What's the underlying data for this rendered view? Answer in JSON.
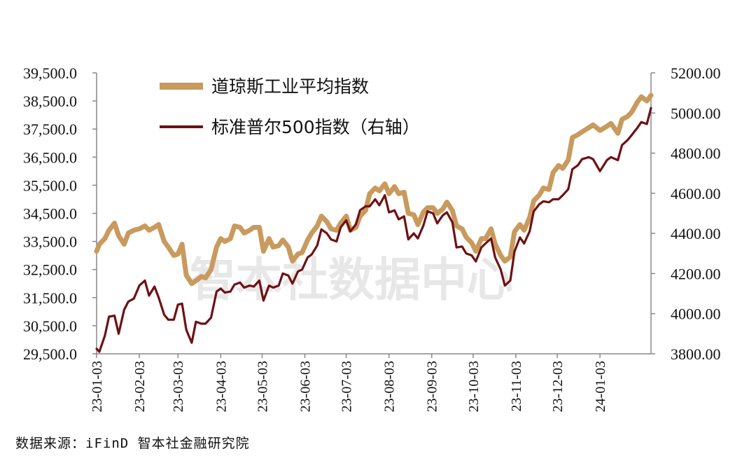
{
  "watermark": "智本社数据中心",
  "source": "数据来源：iFinD  智本社金融研究院",
  "chart_data": {
    "type": "line",
    "x_ticks": [
      "23-01-03",
      "23-02-03",
      "23-03-03",
      "23-04-03",
      "23-05-03",
      "23-06-03",
      "23-07-03",
      "23-08-03",
      "23-09-03",
      "23-10-03",
      "23-11-03",
      "23-12-03",
      "24-01-03"
    ],
    "left_axis": {
      "ylim": [
        29500,
        39500
      ],
      "ticks": [
        "29,500.0",
        "30,500.0",
        "31,500.0",
        "32,500.0",
        "33,500.0",
        "34,500.0",
        "35,500.0",
        "36,500.0",
        "37,500.0",
        "38,500.0",
        "39,500.0"
      ]
    },
    "right_axis": {
      "ylim": [
        3800,
        5200
      ],
      "ticks": [
        "3800.00",
        "4000.00",
        "4200.00",
        "4400.00",
        "4600.00",
        "4800.00",
        "5000.00",
        "5200.00"
      ]
    },
    "series": [
      {
        "name": "道琼斯工业平均指数",
        "axis": "left",
        "color": "#c99a5e",
        "points": [
          [
            "2023-01-03",
            33150
          ],
          [
            "2023-01-05",
            33400
          ],
          [
            "2023-01-09",
            33600
          ],
          [
            "2023-01-12",
            33900
          ],
          [
            "2023-01-16",
            34150
          ],
          [
            "2023-01-19",
            33700
          ],
          [
            "2023-01-23",
            33400
          ],
          [
            "2023-01-26",
            33800
          ],
          [
            "2023-01-30",
            33900
          ],
          [
            "2023-02-03",
            33950
          ],
          [
            "2023-02-07",
            34050
          ],
          [
            "2023-02-10",
            33900
          ],
          [
            "2023-02-14",
            34000
          ],
          [
            "2023-02-17",
            34100
          ],
          [
            "2023-02-21",
            33500
          ],
          [
            "2023-02-24",
            33300
          ],
          [
            "2023-02-28",
            33000
          ],
          [
            "2023-03-03",
            33050
          ],
          [
            "2023-03-06",
            33400
          ],
          [
            "2023-03-09",
            32300
          ],
          [
            "2023-03-13",
            32000
          ],
          [
            "2023-03-16",
            32100
          ],
          [
            "2023-03-20",
            32250
          ],
          [
            "2023-03-23",
            32200
          ],
          [
            "2023-03-27",
            32500
          ],
          [
            "2023-03-31",
            33300
          ],
          [
            "2023-04-03",
            33600
          ],
          [
            "2023-04-06",
            33500
          ],
          [
            "2023-04-10",
            33600
          ],
          [
            "2023-04-13",
            34050
          ],
          [
            "2023-04-17",
            34000
          ],
          [
            "2023-04-20",
            33800
          ],
          [
            "2023-04-24",
            33900
          ],
          [
            "2023-04-27",
            34000
          ],
          [
            "2023-05-01",
            34000
          ],
          [
            "2023-05-04",
            33150
          ],
          [
            "2023-05-08",
            33600
          ],
          [
            "2023-05-11",
            33300
          ],
          [
            "2023-05-15",
            33350
          ],
          [
            "2023-05-18",
            33550
          ],
          [
            "2023-05-22",
            33300
          ],
          [
            "2023-05-25",
            32800
          ],
          [
            "2023-05-29",
            33050
          ],
          [
            "2023-06-01",
            33100
          ],
          [
            "2023-06-05",
            33550
          ],
          [
            "2023-06-08",
            33800
          ],
          [
            "2023-06-12",
            34050
          ],
          [
            "2023-06-15",
            34400
          ],
          [
            "2023-06-19",
            34200
          ],
          [
            "2023-06-22",
            33950
          ],
          [
            "2023-06-26",
            33900
          ],
          [
            "2023-06-29",
            34150
          ],
          [
            "2023-07-03",
            34400
          ],
          [
            "2023-07-06",
            33900
          ],
          [
            "2023-07-10",
            34000
          ],
          [
            "2023-07-13",
            34400
          ],
          [
            "2023-07-17",
            34600
          ],
          [
            "2023-07-20",
            35200
          ],
          [
            "2023-07-24",
            35400
          ],
          [
            "2023-07-27",
            35300
          ],
          [
            "2023-07-31",
            35550
          ],
          [
            "2023-08-03",
            35200
          ],
          [
            "2023-08-07",
            35450
          ],
          [
            "2023-08-10",
            35200
          ],
          [
            "2023-08-14",
            35250
          ],
          [
            "2023-08-17",
            34500
          ],
          [
            "2023-08-21",
            34450
          ],
          [
            "2023-08-24",
            34100
          ],
          [
            "2023-08-28",
            34550
          ],
          [
            "2023-08-31",
            34700
          ],
          [
            "2023-09-04",
            34700
          ],
          [
            "2023-09-07",
            34500
          ],
          [
            "2023-09-11",
            34650
          ],
          [
            "2023-09-14",
            34900
          ],
          [
            "2023-09-18",
            34600
          ],
          [
            "2023-09-21",
            34050
          ],
          [
            "2023-09-25",
            33950
          ],
          [
            "2023-09-28",
            33650
          ],
          [
            "2023-10-02",
            33450
          ],
          [
            "2023-10-05",
            33150
          ],
          [
            "2023-10-09",
            33600
          ],
          [
            "2023-10-12",
            33600
          ],
          [
            "2023-10-16",
            33950
          ],
          [
            "2023-10-19",
            33400
          ],
          [
            "2023-10-23",
            33000
          ],
          [
            "2023-10-26",
            32800
          ],
          [
            "2023-10-30",
            32950
          ],
          [
            "2023-11-02",
            33850
          ],
          [
            "2023-11-06",
            34100
          ],
          [
            "2023-11-09",
            33900
          ],
          [
            "2023-11-13",
            34350
          ],
          [
            "2023-11-16",
            34950
          ],
          [
            "2023-11-20",
            35150
          ],
          [
            "2023-11-23",
            35400
          ],
          [
            "2023-11-27",
            35350
          ],
          [
            "2023-11-30",
            35950
          ],
          [
            "2023-12-04",
            36200
          ],
          [
            "2023-12-07",
            36100
          ],
          [
            "2023-12-11",
            36400
          ],
          [
            "2023-12-14",
            37200
          ],
          [
            "2023-12-18",
            37300
          ],
          [
            "2023-12-21",
            37400
          ],
          [
            "2023-12-26",
            37550
          ],
          [
            "2023-12-29",
            37650
          ],
          [
            "2024-01-03",
            37450
          ],
          [
            "2024-01-08",
            37600
          ],
          [
            "2024-01-11",
            37700
          ],
          [
            "2024-01-16",
            37350
          ],
          [
            "2024-01-19",
            37850
          ],
          [
            "2024-01-23",
            37950
          ],
          [
            "2024-01-26",
            38100
          ],
          [
            "2024-01-30",
            38450
          ],
          [
            "2024-02-02",
            38650
          ],
          [
            "2024-02-06",
            38500
          ],
          [
            "2024-02-09",
            38700
          ]
        ]
      },
      {
        "name": "标准普尔500指数（右轴）",
        "axis": "right",
        "color": "#6e1114",
        "points": [
          [
            "2023-01-03",
            3825
          ],
          [
            "2023-01-05",
            3810
          ],
          [
            "2023-01-09",
            3890
          ],
          [
            "2023-01-12",
            3985
          ],
          [
            "2023-01-16",
            3990
          ],
          [
            "2023-01-19",
            3900
          ],
          [
            "2023-01-23",
            4020
          ],
          [
            "2023-01-26",
            4060
          ],
          [
            "2023-01-30",
            4075
          ],
          [
            "2023-02-03",
            4140
          ],
          [
            "2023-02-07",
            4165
          ],
          [
            "2023-02-10",
            4090
          ],
          [
            "2023-02-14",
            4135
          ],
          [
            "2023-02-17",
            4080
          ],
          [
            "2023-02-21",
            3995
          ],
          [
            "2023-02-24",
            3970
          ],
          [
            "2023-02-28",
            3970
          ],
          [
            "2023-03-03",
            4045
          ],
          [
            "2023-03-06",
            4050
          ],
          [
            "2023-03-09",
            3920
          ],
          [
            "2023-03-13",
            3855
          ],
          [
            "2023-03-16",
            3960
          ],
          [
            "2023-03-20",
            3950
          ],
          [
            "2023-03-23",
            3950
          ],
          [
            "2023-03-27",
            3980
          ],
          [
            "2023-03-31",
            4110
          ],
          [
            "2023-04-03",
            4125
          ],
          [
            "2023-04-06",
            4105
          ],
          [
            "2023-04-10",
            4110
          ],
          [
            "2023-04-13",
            4145
          ],
          [
            "2023-04-17",
            4155
          ],
          [
            "2023-04-20",
            4130
          ],
          [
            "2023-04-24",
            4140
          ],
          [
            "2023-04-27",
            4135
          ],
          [
            "2023-05-01",
            4165
          ],
          [
            "2023-05-04",
            4065
          ],
          [
            "2023-05-08",
            4140
          ],
          [
            "2023-05-11",
            4130
          ],
          [
            "2023-05-15",
            4140
          ],
          [
            "2023-05-18",
            4200
          ],
          [
            "2023-05-22",
            4190
          ],
          [
            "2023-05-25",
            4150
          ],
          [
            "2023-05-29",
            4210
          ],
          [
            "2023-06-01",
            4220
          ],
          [
            "2023-06-05",
            4280
          ],
          [
            "2023-06-08",
            4295
          ],
          [
            "2023-06-12",
            4340
          ],
          [
            "2023-06-15",
            4420
          ],
          [
            "2023-06-19",
            4400
          ],
          [
            "2023-06-22",
            4370
          ],
          [
            "2023-06-26",
            4360
          ],
          [
            "2023-06-29",
            4430
          ],
          [
            "2023-07-03",
            4465
          ],
          [
            "2023-07-06",
            4410
          ],
          [
            "2023-07-10",
            4445
          ],
          [
            "2023-07-13",
            4515
          ],
          [
            "2023-07-17",
            4535
          ],
          [
            "2023-07-20",
            4535
          ],
          [
            "2023-07-24",
            4570
          ],
          [
            "2023-07-27",
            4540
          ],
          [
            "2023-07-31",
            4590
          ],
          [
            "2023-08-03",
            4505
          ],
          [
            "2023-08-07",
            4515
          ],
          [
            "2023-08-10",
            4470
          ],
          [
            "2023-08-14",
            4485
          ],
          [
            "2023-08-17",
            4370
          ],
          [
            "2023-08-21",
            4400
          ],
          [
            "2023-08-24",
            4375
          ],
          [
            "2023-08-28",
            4440
          ],
          [
            "2023-08-31",
            4510
          ],
          [
            "2023-09-04",
            4500
          ],
          [
            "2023-09-07",
            4450
          ],
          [
            "2023-09-11",
            4490
          ],
          [
            "2023-09-14",
            4505
          ],
          [
            "2023-09-18",
            4455
          ],
          [
            "2023-09-21",
            4330
          ],
          [
            "2023-09-25",
            4335
          ],
          [
            "2023-09-28",
            4300
          ],
          [
            "2023-10-02",
            4290
          ],
          [
            "2023-10-05",
            4260
          ],
          [
            "2023-10-09",
            4330
          ],
          [
            "2023-10-12",
            4350
          ],
          [
            "2023-10-16",
            4375
          ],
          [
            "2023-10-19",
            4280
          ],
          [
            "2023-10-23",
            4220
          ],
          [
            "2023-10-26",
            4140
          ],
          [
            "2023-10-30",
            4165
          ],
          [
            "2023-11-02",
            4310
          ],
          [
            "2023-11-06",
            4380
          ],
          [
            "2023-11-09",
            4350
          ],
          [
            "2023-11-13",
            4410
          ],
          [
            "2023-11-16",
            4510
          ],
          [
            "2023-11-20",
            4545
          ],
          [
            "2023-11-23",
            4560
          ],
          [
            "2023-11-27",
            4555
          ],
          [
            "2023-11-30",
            4570
          ],
          [
            "2023-12-04",
            4570
          ],
          [
            "2023-12-07",
            4590
          ],
          [
            "2023-12-11",
            4620
          ],
          [
            "2023-12-14",
            4720
          ],
          [
            "2023-12-18",
            4740
          ],
          [
            "2023-12-21",
            4770
          ],
          [
            "2023-12-26",
            4780
          ],
          [
            "2023-12-29",
            4770
          ],
          [
            "2024-01-03",
            4710
          ],
          [
            "2024-01-08",
            4765
          ],
          [
            "2024-01-11",
            4780
          ],
          [
            "2024-01-16",
            4765
          ],
          [
            "2024-01-19",
            4840
          ],
          [
            "2024-01-23",
            4865
          ],
          [
            "2024-01-26",
            4890
          ],
          [
            "2024-01-30",
            4925
          ],
          [
            "2024-02-02",
            4955
          ],
          [
            "2024-02-06",
            4945
          ],
          [
            "2024-02-09",
            5025
          ]
        ]
      }
    ]
  }
}
